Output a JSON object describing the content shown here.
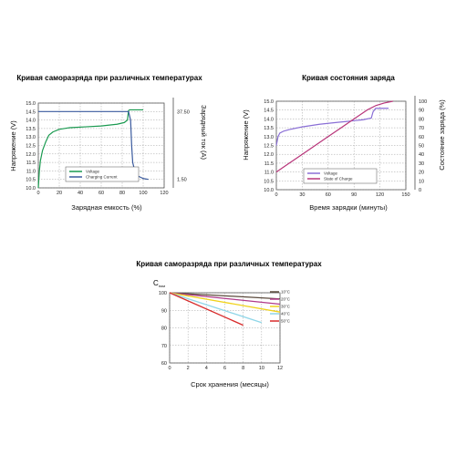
{
  "chart_data": [
    {
      "type": "line",
      "title": "Кривая саморазряда при различных температурах",
      "xlabel": "Зарядная емкость (%)",
      "ylabel": "Напряжение (V)",
      "y2label": "Зарядный ток (A)",
      "xticks": [
        "0",
        "20",
        "40",
        "60",
        "80",
        "100",
        "120"
      ],
      "yticks": [
        "10.0",
        "10.5",
        "11.0",
        "11.5",
        "12.0",
        "12.5",
        "13.0",
        "13.5",
        "14.0",
        "14.5",
        "15.0"
      ],
      "y2ticks": [
        "37.50",
        "1.50"
      ],
      "xlim": [
        0,
        120
      ],
      "ylim": [
        10.0,
        15.0
      ],
      "grid": true,
      "legend_position": "bottom-center",
      "series": [
        {
          "name": "Voltage",
          "color": "#1a9a50",
          "x": [
            0,
            1,
            2,
            4,
            7,
            10,
            14,
            20,
            30,
            45,
            60,
            75,
            82,
            85,
            86,
            87,
            90,
            100
          ],
          "y": [
            10.0,
            11.0,
            11.6,
            12.2,
            12.7,
            13.1,
            13.3,
            13.45,
            13.55,
            13.6,
            13.65,
            13.75,
            13.85,
            14.0,
            14.55,
            14.6,
            14.6,
            14.6
          ]
        },
        {
          "name": "Charging Current",
          "color": "#3a5a9e",
          "x": [
            0,
            20,
            40,
            60,
            80,
            86,
            88,
            89,
            90,
            92,
            95,
            100,
            105
          ],
          "y": [
            14.5,
            14.5,
            14.5,
            14.5,
            14.5,
            14.5,
            14.0,
            12.5,
            11.5,
            11.0,
            10.7,
            10.55,
            10.5
          ]
        }
      ]
    },
    {
      "type": "line",
      "title": "Кривая состояния заряда",
      "xlabel": "Время зарядки (минуты)",
      "ylabel": "Напряжение (V)",
      "y2label": "Состояние заряда (%)",
      "xticks": [
        "0",
        "30",
        "60",
        "90",
        "120",
        "150"
      ],
      "yticks": [
        "10.0",
        "10.5",
        "11.0",
        "11.5",
        "12.0",
        "12.5",
        "13.0",
        "13.5",
        "14.0",
        "14.5",
        "15.0"
      ],
      "y2ticks": [
        "0",
        "10",
        "20",
        "30",
        "40",
        "50",
        "60",
        "70",
        "80",
        "90",
        "100"
      ],
      "xlim": [
        0,
        150
      ],
      "ylim": [
        10.0,
        15.0
      ],
      "y2lim": [
        0,
        100
      ],
      "grid": true,
      "legend_position": "bottom-center",
      "series": [
        {
          "name": "Voltage",
          "color": "#8a6fd6",
          "axis": "left",
          "x": [
            0,
            2,
            4,
            8,
            15,
            30,
            50,
            70,
            90,
            100,
            110,
            112,
            115,
            120,
            130
          ],
          "y": [
            12.5,
            13.0,
            13.2,
            13.3,
            13.4,
            13.55,
            13.7,
            13.8,
            13.9,
            13.95,
            14.05,
            14.4,
            14.6,
            14.6,
            14.6
          ]
        },
        {
          "name": "State of Charge",
          "color": "#b8357a",
          "axis": "right",
          "x": [
            0,
            15,
            30,
            45,
            60,
            75,
            90,
            105,
            115,
            125,
            135
          ],
          "y2": [
            20,
            30,
            40,
            50,
            60,
            70,
            80,
            90,
            95,
            98,
            100
          ]
        }
      ]
    },
    {
      "type": "line",
      "title": "Кривая саморазряда при различных температурах",
      "xlabel": "Срок хранения (месяцы)",
      "ylabel": "C",
      "ylabel_sub": "ном",
      "xticks": [
        "0",
        "2",
        "4",
        "6",
        "8",
        "10",
        "12"
      ],
      "yticks": [
        "60",
        "70",
        "80",
        "90",
        "100"
      ],
      "xlim": [
        0,
        12
      ],
      "ylim": [
        60,
        100
      ],
      "grid": true,
      "legend_position": "top-right",
      "series": [
        {
          "name": "10°C",
          "color": "#5b4a3c",
          "x": [
            0,
            12
          ],
          "y": [
            100,
            96.5
          ]
        },
        {
          "name": "20°C",
          "color": "#b03a8a",
          "x": [
            0,
            12
          ],
          "y": [
            100,
            93.5
          ]
        },
        {
          "name": "30°C",
          "color": "#f0d21c",
          "x": [
            0,
            12
          ],
          "y": [
            100,
            89.0
          ]
        },
        {
          "name": "40°C",
          "color": "#8fd6e8",
          "x": [
            0,
            10
          ],
          "y": [
            100,
            83.0
          ]
        },
        {
          "name": "50°C",
          "color": "#d82c2c",
          "x": [
            0,
            8
          ],
          "y": [
            100,
            81.5
          ]
        }
      ]
    }
  ]
}
